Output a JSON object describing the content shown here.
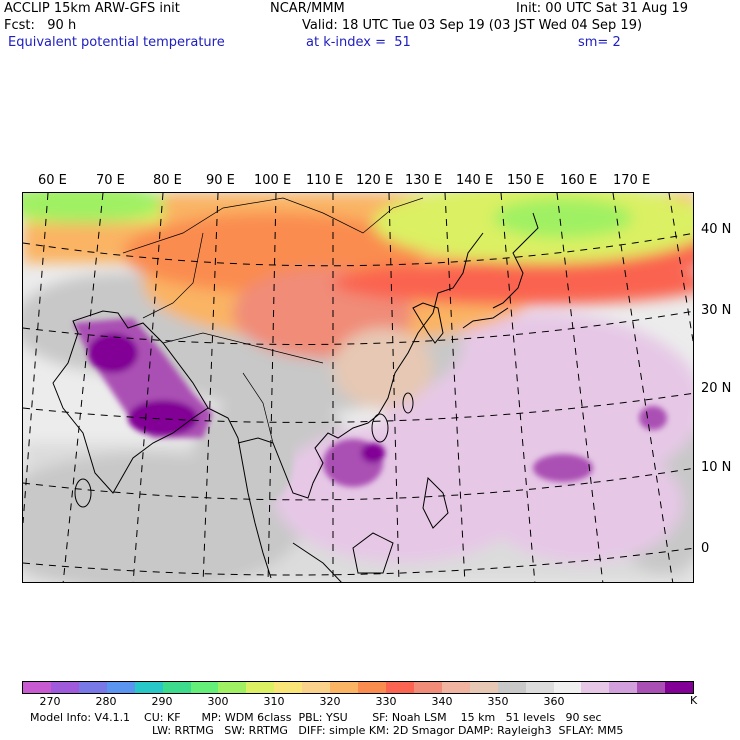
{
  "header": {
    "line1_left": "ACCLIP 15km ARW-GFS init",
    "line1_mid": "NCAR/MMM",
    "line1_right": "Init: 00 UTC Sat 31 Aug 19",
    "line2_left": "Fcst:   90 h",
    "line2_right": "Valid: 18 UTC Tue 03 Sep 19 (03 JST Wed 04 Sep 19)",
    "line3_left": "Equivalent potential temperature",
    "line3_mid": "at k-index =  51",
    "line3_right": "sm= 2"
  },
  "lon_labels": [
    "60 E",
    "70 E",
    "80 E",
    "90 E",
    "100 E",
    "110 E",
    "120 E",
    "130 E",
    "140 E",
    "150 E",
    "160 E",
    "170 E"
  ],
  "lat_labels": [
    "40 N",
    "30 N",
    "20 N",
    "10 N",
    "0"
  ],
  "colorbar": {
    "colors": [
      "#c85ad2",
      "#a05adc",
      "#7878e6",
      "#5a96f0",
      "#28c8c8",
      "#3cdc8c",
      "#64f078",
      "#a0f064",
      "#dcf064",
      "#fae678",
      "#fad28c",
      "#fab464",
      "#fa8c50",
      "#fa6450",
      "#f08c78",
      "#f0b4a0",
      "#e6c8b4",
      "#c8c8c8",
      "#dcdcdc",
      "#f0f0f0",
      "#e6c8e6",
      "#d2a0dc",
      "#aa50b4",
      "#820096"
    ],
    "labels": [
      "270",
      "280",
      "290",
      "300",
      "310",
      "320",
      "330",
      "340",
      "350",
      "360"
    ],
    "unit": "K"
  },
  "footer": {
    "line1": "Model Info: V4.1.1    CU: KF      MP: WDM 6class  PBL: YSU       SF: Noah LSM    15 km   51 levels   90 sec",
    "line2": "LW: RRTMG   SW: RRTMG   DIFF: simple KM: 2D Smagor DAMP: Rayleigh3  SFLAY: MM5"
  }
}
